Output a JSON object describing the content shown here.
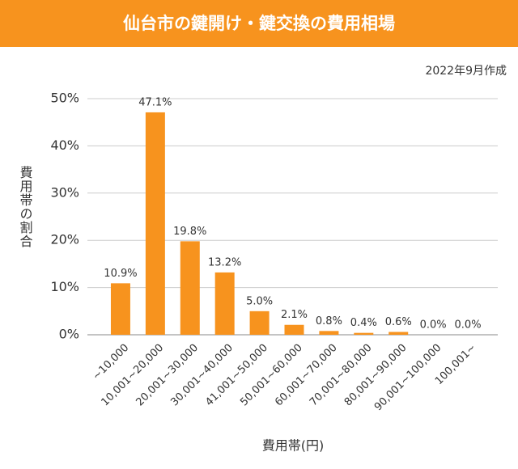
{
  "chart_data": {
    "type": "bar",
    "title": "仙台市の鍵開け・鍵交換の費用相場",
    "subtitle": "2022年9月作成",
    "y_label": "費用帯の割合",
    "x_label": "費用帯(円)",
    "categories": [
      "~10,000",
      "10,001~20,000",
      "20,001~30,000",
      "30,001~40,000",
      "41,001~50,000",
      "50,001~60,000",
      "60,001~70,000",
      "70,001~80,000",
      "80,001~90,000",
      "90,001~100,000",
      "100,001~"
    ],
    "values": [
      10.9,
      47.1,
      19.8,
      13.2,
      5.0,
      2.1,
      0.8,
      0.4,
      0.6,
      0.0,
      0.0
    ],
    "value_labels": [
      "10.9%",
      "47.1%",
      "19.8%",
      "13.2%",
      "5.0%",
      "2.1%",
      "0.8%",
      "0.4%",
      "0.6%",
      "0.0%",
      "0.0%"
    ],
    "color": "#f7931e",
    "ylim": [
      0,
      50
    ],
    "yticks": [
      {
        "value": 0,
        "label": "0%"
      },
      {
        "value": 10,
        "label": "10%"
      },
      {
        "value": 20,
        "label": "20%"
      },
      {
        "value": 30,
        "label": "30%"
      },
      {
        "value": 40,
        "label": "40%"
      },
      {
        "value": 50,
        "label": "50%"
      }
    ],
    "grid": true
  }
}
